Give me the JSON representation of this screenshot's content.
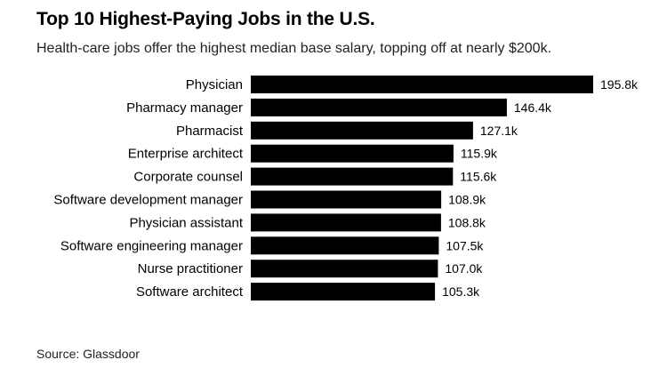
{
  "chart_data": {
    "type": "bar",
    "orientation": "horizontal",
    "title": "Top 10 Highest-Paying Jobs in the U.S.",
    "subtitle": "Health-care jobs offer the highest median base salary, topping off at nearly $200k.",
    "categories": [
      "Physician",
      "Pharmacy manager",
      "Pharmacist",
      "Enterprise architect",
      "Corporate counsel",
      "Software development manager",
      "Physician assistant",
      "Software engineering manager",
      "Nurse practitioner",
      "Software architect"
    ],
    "values": [
      195.8,
      146.4,
      127.1,
      115.9,
      115.6,
      108.9,
      108.8,
      107.5,
      107.0,
      105.3
    ],
    "value_labels": [
      "195.8k",
      "146.4k",
      "127.1k",
      "115.9k",
      "115.6k",
      "108.9k",
      "108.8k",
      "107.5k",
      "107.0k",
      "105.3k"
    ],
    "xlim": [
      0,
      195.8
    ],
    "xlabel": "",
    "ylabel": "",
    "grid": false,
    "legend": "none",
    "bar_color": "#000000",
    "source": "Source: Glassdoor"
  }
}
